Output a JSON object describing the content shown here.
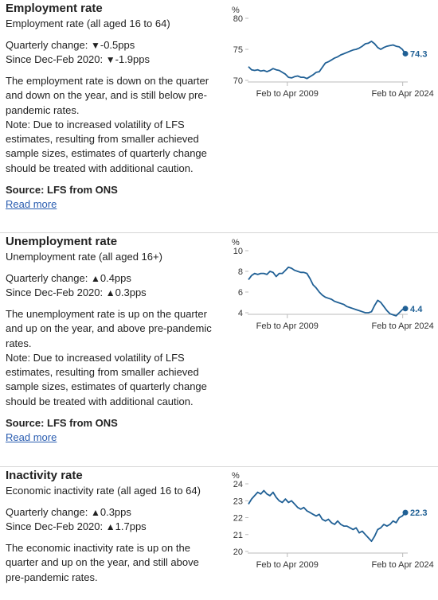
{
  "panels": [
    {
      "title": "Employment rate",
      "subtitle": "Employment rate (all aged 16 to 64)",
      "quarterly_change_label": "Quarterly change:",
      "quarterly_change_symbol": "▼",
      "quarterly_change_value": "-0.5pps",
      "since_label": "Since Dec-Feb 2020:",
      "since_symbol": "▼",
      "since_value": "-1.9pps",
      "description": "The employment rate is down on the quarter and down on the year, and is still below pre-pandemic rates.",
      "note": "Note: Due to increased volatility of LFS estimates, resulting from smaller achieved sample sizes, estimates of quarterly change should be treated with additional caution.",
      "source": "Source: LFS from ONS",
      "read_more": "Read more"
    },
    {
      "title": "Unemployment rate",
      "subtitle": "Unemployment rate (all aged 16+)",
      "quarterly_change_label": "Quarterly change:",
      "quarterly_change_symbol": "▲",
      "quarterly_change_value": "0.4pps",
      "since_label": "Since Dec-Feb 2020:",
      "since_symbol": "▲",
      "since_value": "0.3pps",
      "description": "The unemployment rate is up on the quarter and up on the year, and above pre-pandemic rates.",
      "note": "Note: Due to increased volatility of LFS estimates, resulting from smaller achieved sample sizes, estimates of quarterly change should be treated with additional caution.",
      "source": "Source: LFS from ONS",
      "read_more": "Read more"
    },
    {
      "title": "Inactivity rate",
      "subtitle": "Economic inactivity rate (all aged 16 to 64)",
      "quarterly_change_label": "Quarterly change:",
      "quarterly_change_symbol": "▲",
      "quarterly_change_value": "0.3pps",
      "since_label": "Since Dec-Feb 2020:",
      "since_symbol": "▲",
      "since_value": "1.7pps",
      "description": "The economic inactivity rate is up on the quarter and up on the year, and still above pre-pandemic rates."
    }
  ],
  "colors": {
    "line": "#206095",
    "link": "#2a5db0",
    "axis": "#bbbbbb"
  },
  "chart_data": [
    {
      "type": "line",
      "ylabel": "%",
      "ylim": [
        70,
        80
      ],
      "yticks": [
        70,
        75,
        80
      ],
      "x_tick_labels": [
        "Feb to Apr 2009",
        "Feb to Apr 2024"
      ],
      "x_range": [
        2004.2,
        2024.7
      ],
      "x_ticks": [
        2009.25,
        2024.25
      ],
      "end_label": "74.3",
      "series": [
        {
          "x": [
            2004.2,
            2004.6,
            2005.0,
            2005.4,
            2005.8,
            2006.2,
            2006.6,
            2007.0,
            2007.4,
            2007.8,
            2008.2,
            2008.6,
            2009.0,
            2009.4,
            2009.8,
            2010.2,
            2010.6,
            2011.0,
            2011.4,
            2011.8,
            2012.2,
            2012.6,
            2013.0,
            2013.4,
            2013.8,
            2014.2,
            2014.6,
            2015.0,
            2015.4,
            2015.8,
            2016.2,
            2016.6,
            2017.0,
            2017.4,
            2017.8,
            2018.2,
            2018.6,
            2019.0,
            2019.4,
            2019.8,
            2020.2,
            2020.6,
            2021.0,
            2021.4,
            2021.8,
            2022.2,
            2022.6,
            2023.0,
            2023.4,
            2023.8,
            2024.2,
            2024.6
          ],
          "y": [
            72.2,
            71.7,
            71.6,
            71.7,
            71.5,
            71.6,
            71.4,
            71.6,
            71.9,
            71.7,
            71.6,
            71.3,
            71.0,
            70.5,
            70.4,
            70.6,
            70.7,
            70.5,
            70.5,
            70.3,
            70.6,
            70.9,
            71.3,
            71.4,
            72.1,
            72.8,
            73.0,
            73.3,
            73.6,
            73.8,
            74.1,
            74.3,
            74.5,
            74.7,
            74.9,
            75.0,
            75.2,
            75.5,
            75.9,
            76.0,
            76.3,
            75.9,
            75.3,
            75.0,
            75.3,
            75.5,
            75.6,
            75.7,
            75.5,
            75.4,
            75.0,
            74.3
          ]
        }
      ]
    },
    {
      "type": "line",
      "ylabel": "%",
      "ylim": [
        4,
        10
      ],
      "yticks": [
        4,
        6,
        8,
        10
      ],
      "x_tick_labels": [
        "Feb to Apr 2009",
        "Feb to Apr 2024"
      ],
      "x_range": [
        2004.2,
        2024.7
      ],
      "x_ticks": [
        2009.25,
        2024.25
      ],
      "end_label": "4.4",
      "series": [
        {
          "x": [
            2004.2,
            2004.6,
            2005.0,
            2005.4,
            2005.8,
            2006.2,
            2006.6,
            2007.0,
            2007.4,
            2007.8,
            2008.2,
            2008.6,
            2009.0,
            2009.4,
            2009.8,
            2010.2,
            2010.6,
            2011.0,
            2011.4,
            2011.8,
            2012.2,
            2012.6,
            2013.0,
            2013.4,
            2013.8,
            2014.2,
            2014.6,
            2015.0,
            2015.4,
            2015.8,
            2016.2,
            2016.6,
            2017.0,
            2017.4,
            2017.8,
            2018.2,
            2018.6,
            2019.0,
            2019.4,
            2019.8,
            2020.2,
            2020.6,
            2021.0,
            2021.4,
            2021.8,
            2022.2,
            2022.6,
            2023.0,
            2023.4,
            2023.8,
            2024.2,
            2024.6
          ],
          "y": [
            7.2,
            7.6,
            7.8,
            7.7,
            7.8,
            7.8,
            7.7,
            8.0,
            7.9,
            7.5,
            7.8,
            7.8,
            8.1,
            8.4,
            8.3,
            8.1,
            8.0,
            7.9,
            7.9,
            7.8,
            7.3,
            6.7,
            6.4,
            6.0,
            5.7,
            5.5,
            5.4,
            5.3,
            5.1,
            5.0,
            4.9,
            4.8,
            4.6,
            4.5,
            4.4,
            4.3,
            4.2,
            4.1,
            4.0,
            4.0,
            4.1,
            4.7,
            5.2,
            5.0,
            4.6,
            4.2,
            3.9,
            3.8,
            3.7,
            4.0,
            4.3,
            4.4
          ]
        }
      ]
    },
    {
      "type": "line",
      "ylabel": "%",
      "ylim": [
        20,
        24
      ],
      "yticks": [
        20,
        21,
        22,
        23,
        24
      ],
      "x_tick_labels": [
        "Feb to Apr 2009",
        "Feb to Apr 2024"
      ],
      "x_range": [
        2004.2,
        2024.7
      ],
      "x_ticks": [
        2009.25,
        2024.25
      ],
      "end_label": "22.3",
      "series": [
        {
          "x": [
            2004.2,
            2004.6,
            2005.0,
            2005.4,
            2005.8,
            2006.2,
            2006.6,
            2007.0,
            2007.4,
            2007.8,
            2008.2,
            2008.6,
            2009.0,
            2009.4,
            2009.8,
            2010.2,
            2010.6,
            2011.0,
            2011.4,
            2011.8,
            2012.2,
            2012.6,
            2013.0,
            2013.4,
            2013.8,
            2014.2,
            2014.6,
            2015.0,
            2015.4,
            2015.8,
            2016.2,
            2016.6,
            2017.0,
            2017.4,
            2017.8,
            2018.2,
            2018.6,
            2019.0,
            2019.4,
            2019.8,
            2020.2,
            2020.6,
            2021.0,
            2021.4,
            2021.8,
            2022.2,
            2022.6,
            2023.0,
            2023.4,
            2023.8,
            2024.2,
            2024.6
          ],
          "y": [
            22.8,
            23.1,
            23.3,
            23.5,
            23.4,
            23.6,
            23.4,
            23.3,
            23.5,
            23.2,
            23.0,
            22.9,
            23.1,
            22.9,
            23.0,
            22.8,
            22.6,
            22.5,
            22.6,
            22.4,
            22.3,
            22.2,
            22.1,
            22.2,
            21.9,
            21.8,
            21.9,
            21.7,
            21.6,
            21.8,
            21.6,
            21.5,
            21.5,
            21.4,
            21.3,
            21.4,
            21.1,
            21.2,
            21.0,
            20.8,
            20.6,
            20.9,
            21.3,
            21.4,
            21.6,
            21.5,
            21.6,
            21.8,
            21.7,
            22.0,
            22.1,
            22.3
          ]
        }
      ]
    }
  ]
}
